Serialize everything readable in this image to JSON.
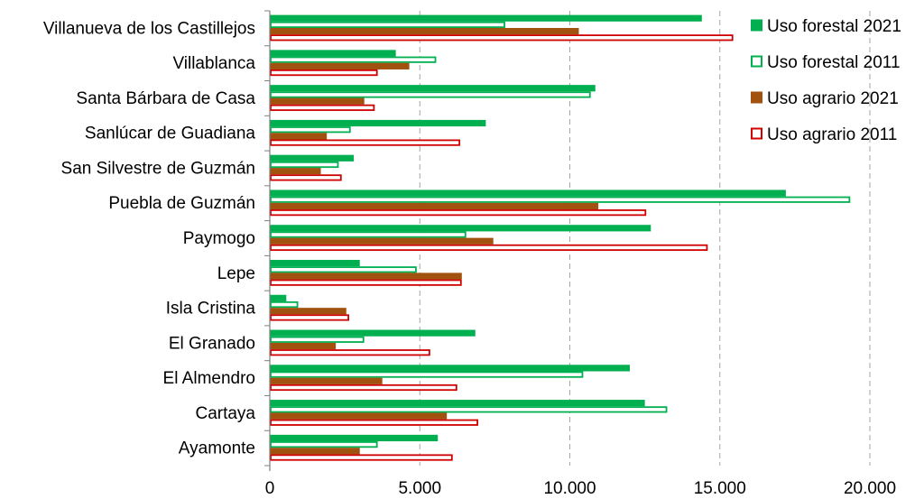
{
  "chart_data": {
    "type": "bar",
    "orientation": "horizontal",
    "title": "",
    "xlabel": "",
    "ylabel": "",
    "categories": [
      "Villanueva de los Castillejos",
      "Villablanca",
      "Santa Bárbara de Casa",
      "Sanlúcar de Guadiana",
      "San Silvestre de Guzmán",
      "Puebla de Guzmán",
      "Paymogo",
      "Lepe",
      "Isla Cristina",
      "El Granado",
      "El Almendro",
      "Cartaya",
      "Ayamonte"
    ],
    "series": [
      {
        "name": "Uso forestal 2021",
        "color": "#00b050",
        "style": "filled",
        "values": [
          14400,
          4200,
          10850,
          7200,
          2800,
          17200,
          12700,
          3000,
          550,
          6850,
          12000,
          12500,
          5600
        ]
      },
      {
        "name": "Uso forestal 2011",
        "color": "#00b050",
        "style": "outline",
        "values": [
          7850,
          5550,
          10700,
          2700,
          2300,
          19350,
          6550,
          4900,
          950,
          3150,
          10450,
          13250,
          3600
        ]
      },
      {
        "name": "Uso agrario 2021",
        "color": "#a0520e",
        "style": "filled",
        "values": [
          10300,
          4650,
          3150,
          1900,
          1700,
          10950,
          7450,
          6400,
          2550,
          2200,
          3750,
          5900,
          3000
        ]
      },
      {
        "name": "Uso agrario 2011",
        "color": "#d00000",
        "style": "outline",
        "values": [
          15450,
          3600,
          3500,
          6350,
          2400,
          12550,
          14600,
          6400,
          2650,
          5350,
          6250,
          6950,
          6100
        ]
      }
    ],
    "xlim": [
      0,
      20000
    ],
    "xticks": [
      0,
      5000,
      10000,
      15000,
      20000
    ],
    "xtick_labels": [
      "0",
      "5.000",
      "10.000",
      "15.000",
      "20.000"
    ],
    "grid": "vertical dashed",
    "legend": "top-right"
  }
}
